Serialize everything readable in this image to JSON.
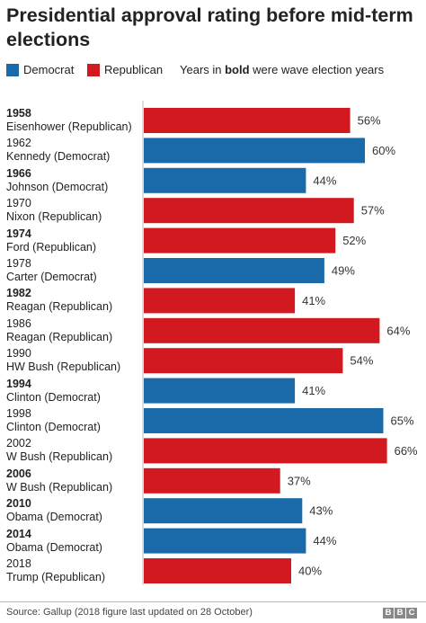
{
  "title": "Presidential approval rating before mid-term elections",
  "legend": {
    "items": [
      {
        "label": "Democrat",
        "color": "#1a6aa9"
      },
      {
        "label": "Republican",
        "color": "#d1191f"
      }
    ],
    "note_prefix": "Years in ",
    "note_bold": "bold",
    "note_suffix": " were wave election years"
  },
  "source": "Source: Gallup (2018 figure last updated on 28 October)",
  "logo_letters": [
    "B",
    "B",
    "C"
  ],
  "chart_data": {
    "type": "bar",
    "orientation": "horizontal",
    "categories": [
      "1958",
      "1962",
      "1966",
      "1970",
      "1974",
      "1978",
      "1982",
      "1986",
      "1990",
      "1994",
      "1998",
      "2002",
      "2006",
      "2010",
      "2014",
      "2018"
    ],
    "presidents": [
      "Eisenhower (Republican)",
      "Kennedy (Democrat)",
      "Johnson (Democrat)",
      "Nixon (Republican)",
      "Ford (Republican)",
      "Carter (Democrat)",
      "Reagan (Republican)",
      "Reagan (Republican)",
      "HW Bush  (Republican)",
      "Clinton (Democrat)",
      "Clinton (Democrat)",
      "W Bush (Republican)",
      "W Bush (Republican)",
      "Obama (Democrat)",
      "Obama (Democrat)",
      "Trump (Republican)"
    ],
    "parties": [
      "Republican",
      "Democrat",
      "Democrat",
      "Republican",
      "Republican",
      "Democrat",
      "Republican",
      "Republican",
      "Republican",
      "Democrat",
      "Democrat",
      "Republican",
      "Republican",
      "Democrat",
      "Democrat",
      "Republican"
    ],
    "wave_years": [
      true,
      false,
      true,
      false,
      true,
      false,
      true,
      false,
      false,
      true,
      false,
      false,
      true,
      true,
      true,
      false
    ],
    "values": [
      56,
      60,
      44,
      57,
      52,
      49,
      41,
      64,
      54,
      41,
      65,
      66,
      37,
      43,
      44,
      40
    ],
    "value_suffix": "%",
    "colors": {
      "Democrat": "#1a6aa9",
      "Republican": "#d1191f"
    }
  }
}
